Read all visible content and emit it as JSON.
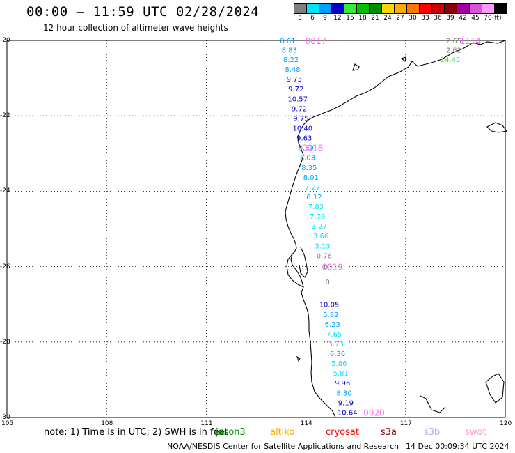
{
  "header": {
    "title": "00:00 – 11:59 UTC 02/28/2024",
    "subtitle": "12 hour collection of altimeter wave heights"
  },
  "color_scale": {
    "unit": "(ft)",
    "bins": [
      {
        "label": "3",
        "color": "#7f7f7f"
      },
      {
        "label": "6",
        "color": "#00e5ff"
      },
      {
        "label": "9",
        "color": "#00a0ff"
      },
      {
        "label": "12",
        "color": "#0000cd"
      },
      {
        "label": "15",
        "color": "#33ee33"
      },
      {
        "label": "18",
        "color": "#00c000"
      },
      {
        "label": "21",
        "color": "#008c00"
      },
      {
        "label": "24",
        "color": "#ffd700"
      },
      {
        "label": "27",
        "color": "#ffaa00"
      },
      {
        "label": "30",
        "color": "#ff7700"
      },
      {
        "label": "33",
        "color": "#ff0000"
      },
      {
        "label": "36",
        "color": "#c80000"
      },
      {
        "label": "39",
        "color": "#8b0000"
      },
      {
        "label": "42",
        "color": "#a000a0"
      },
      {
        "label": "45",
        "color": "#d855d8"
      },
      {
        "label": "70",
        "color": "#ff99ff"
      },
      {
        "label": "",
        "color": "#000000"
      }
    ]
  },
  "map": {
    "lat_labels": [
      "-20",
      "-22",
      "-24",
      "-26",
      "-28",
      "-30"
    ],
    "lon_labels": [
      "105",
      "108",
      "111",
      "114",
      "117",
      "120"
    ],
    "lat_range": [
      -30,
      -20
    ],
    "lon_range": [
      105,
      120
    ],
    "observations": [
      {
        "lon": 113.45,
        "lat": -20.0,
        "value": "8.61",
        "color": "#00a0ff"
      },
      {
        "lon": 113.5,
        "lat": -20.25,
        "value": "8.83",
        "color": "#00a0ff"
      },
      {
        "lon": 113.55,
        "lat": -20.5,
        "value": "8.22",
        "color": "#00a0ff"
      },
      {
        "lon": 113.6,
        "lat": -20.76,
        "value": "8.48",
        "color": "#00a0ff"
      },
      {
        "lon": 113.65,
        "lat": -21.02,
        "value": "9.73",
        "color": "#0000cd"
      },
      {
        "lon": 113.7,
        "lat": -21.28,
        "value": "9.72",
        "color": "#0000cd"
      },
      {
        "lon": 113.75,
        "lat": -21.54,
        "value": "10.57",
        "color": "#0000cd"
      },
      {
        "lon": 113.8,
        "lat": -21.8,
        "value": "9.72",
        "color": "#0000cd"
      },
      {
        "lon": 113.85,
        "lat": -22.06,
        "value": "9.75",
        "color": "#0000cd"
      },
      {
        "lon": 113.9,
        "lat": -22.32,
        "value": "10.40",
        "color": "#0000cd"
      },
      {
        "lon": 113.95,
        "lat": -22.58,
        "value": "9.63",
        "color": "#0000cd"
      },
      {
        "lon": 114.0,
        "lat": -22.84,
        "value": "8.30",
        "color": "#00a0ff"
      },
      {
        "lon": 114.05,
        "lat": -23.1,
        "value": "8.03",
        "color": "#00a0ff"
      },
      {
        "lon": 114.1,
        "lat": -23.36,
        "value": "8.35",
        "color": "#00a0ff"
      },
      {
        "lon": 114.15,
        "lat": -23.62,
        "value": "8.01",
        "color": "#00a0ff"
      },
      {
        "lon": 114.2,
        "lat": -23.88,
        "value": "7.27",
        "color": "#00e5ff"
      },
      {
        "lon": 114.25,
        "lat": -24.14,
        "value": "8.12",
        "color": "#00a0ff"
      },
      {
        "lon": 114.3,
        "lat": -24.4,
        "value": "7.83",
        "color": "#00e5ff"
      },
      {
        "lon": 114.35,
        "lat": -24.66,
        "value": "7.79",
        "color": "#00e5ff"
      },
      {
        "lon": 114.4,
        "lat": -24.92,
        "value": "3.27",
        "color": "#00e5ff"
      },
      {
        "lon": 114.45,
        "lat": -25.18,
        "value": "3.66",
        "color": "#00e5ff"
      },
      {
        "lon": 114.5,
        "lat": -25.44,
        "value": "3.13",
        "color": "#00e5ff"
      },
      {
        "lon": 114.55,
        "lat": -25.7,
        "value": "0.76",
        "color": "#7f7f7f"
      },
      {
        "lon": 114.6,
        "lat": -26.0,
        "value": "0",
        "color": "#7f7f7f"
      },
      {
        "lon": 114.65,
        "lat": -26.4,
        "value": "0",
        "color": "#7f7f7f"
      },
      {
        "lon": 114.7,
        "lat": -27.0,
        "value": "10.05",
        "color": "#0000cd"
      },
      {
        "lon": 114.75,
        "lat": -27.26,
        "value": "5.82",
        "color": "#00a0ff"
      },
      {
        "lon": 114.8,
        "lat": -27.52,
        "value": "6.23",
        "color": "#00a0ff"
      },
      {
        "lon": 114.85,
        "lat": -27.78,
        "value": "7.65",
        "color": "#00e5ff"
      },
      {
        "lon": 114.9,
        "lat": -28.04,
        "value": "3.73",
        "color": "#00e5ff"
      },
      {
        "lon": 114.95,
        "lat": -28.3,
        "value": "6.36",
        "color": "#00a0ff"
      },
      {
        "lon": 115.0,
        "lat": -28.56,
        "value": "5.86",
        "color": "#00e5ff"
      },
      {
        "lon": 115.05,
        "lat": -28.82,
        "value": "5.81",
        "color": "#00e5ff"
      },
      {
        "lon": 115.1,
        "lat": -29.08,
        "value": "9.96",
        "color": "#0000cd"
      },
      {
        "lon": 115.15,
        "lat": -29.34,
        "value": "8.30",
        "color": "#00a0ff"
      },
      {
        "lon": 115.2,
        "lat": -29.6,
        "value": "9.19",
        "color": "#0000cd"
      },
      {
        "lon": 115.25,
        "lat": -29.86,
        "value": "10.64",
        "color": "#0000cd"
      },
      {
        "lon": 118.45,
        "lat": -20.0,
        "value": "2.65",
        "color": "#7f7f7f"
      },
      {
        "lon": 118.45,
        "lat": -20.25,
        "value": "2.62",
        "color": "#7f7f7f"
      },
      {
        "lon": 118.35,
        "lat": -20.5,
        "value": "14.45",
        "color": "#33ee33"
      }
    ],
    "track_times": [
      {
        "lon": 114.3,
        "lat": -20.0,
        "label": "0017",
        "color": "#ff66ff"
      },
      {
        "lon": 114.2,
        "lat": -22.84,
        "label": "0018",
        "color": "#ff66ff"
      },
      {
        "lon": 114.8,
        "lat": -26.0,
        "label": "0019",
        "color": "#ff66ff"
      },
      {
        "lon": 116.05,
        "lat": -29.86,
        "label": "0020",
        "color": "#ff66ff"
      },
      {
        "lon": 118.95,
        "lat": -20.0,
        "label": "1114",
        "color": "#ff66ff"
      }
    ]
  },
  "note": {
    "text": "note: 1) Time is in UTC; 2) SWH is in feet",
    "missions": [
      {
        "name": "jason3",
        "color": "#008c00"
      },
      {
        "name": "altiko",
        "color": "#ffaa00"
      },
      {
        "name": "cryosat",
        "color": "#ff0000"
      },
      {
        "name": "s3a",
        "color": "#8b0000"
      },
      {
        "name": "s3b",
        "color": "#b9a6ff"
      },
      {
        "name": "swot",
        "color": "#ff99cc"
      }
    ]
  },
  "footer": {
    "credit": "NOAA/NESDIS Center for Satellite Applications and Research",
    "generated": "14 Dec 00:09:34 UTC 2024"
  }
}
